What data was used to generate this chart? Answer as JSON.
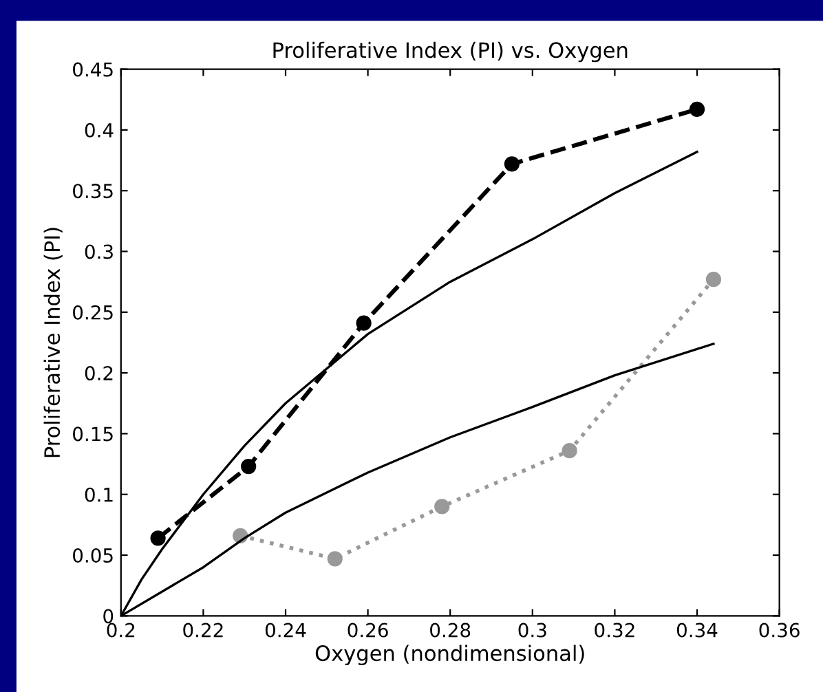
{
  "chart_data": {
    "type": "line",
    "title": "Proliferative Index (PI) vs. Oxygen",
    "xlabel": "Oxygen (nondimensional)",
    "ylabel": "Proliferative Index (PI)",
    "xlim": [
      0.2,
      0.36
    ],
    "xticks": [
      0.2,
      0.22,
      0.24,
      0.26,
      0.28,
      0.3,
      0.32,
      0.34,
      0.36
    ],
    "ylim": [
      0,
      0.45
    ],
    "yticks": [
      0,
      0.05,
      0.1,
      0.15,
      0.2,
      0.25,
      0.3,
      0.35,
      0.4,
      0.45
    ],
    "grid": false,
    "legend": false,
    "series": [
      {
        "color": "#000000",
        "line_style": "dashed",
        "marker": "circle",
        "x": [
          0.209,
          0.231,
          0.259,
          0.295,
          0.34
        ],
        "values": [
          0.064,
          0.123,
          0.241,
          0.372,
          0.417
        ]
      },
      {
        "color": "#999999",
        "line_style": "dotted",
        "marker": "circle",
        "x": [
          0.229,
          0.252,
          0.278,
          0.309,
          0.344
        ],
        "values": [
          0.066,
          0.047,
          0.09,
          0.136,
          0.277
        ]
      },
      {
        "color": "#000000",
        "line_style": "solid",
        "marker": "none",
        "x": [
          0.2,
          0.205,
          0.21,
          0.22,
          0.23,
          0.24,
          0.26,
          0.28,
          0.3,
          0.32,
          0.34
        ],
        "values": [
          0,
          0.03,
          0.055,
          0.1,
          0.14,
          0.175,
          0.232,
          0.275,
          0.31,
          0.348,
          0.382
        ]
      },
      {
        "color": "#000000",
        "line_style": "solid",
        "marker": "none",
        "x": [
          0.2,
          0.22,
          0.23,
          0.24,
          0.26,
          0.28,
          0.3,
          0.32,
          0.344
        ],
        "values": [
          0,
          0.04,
          0.064,
          0.085,
          0.118,
          0.147,
          0.172,
          0.198,
          0.224
        ]
      }
    ]
  }
}
